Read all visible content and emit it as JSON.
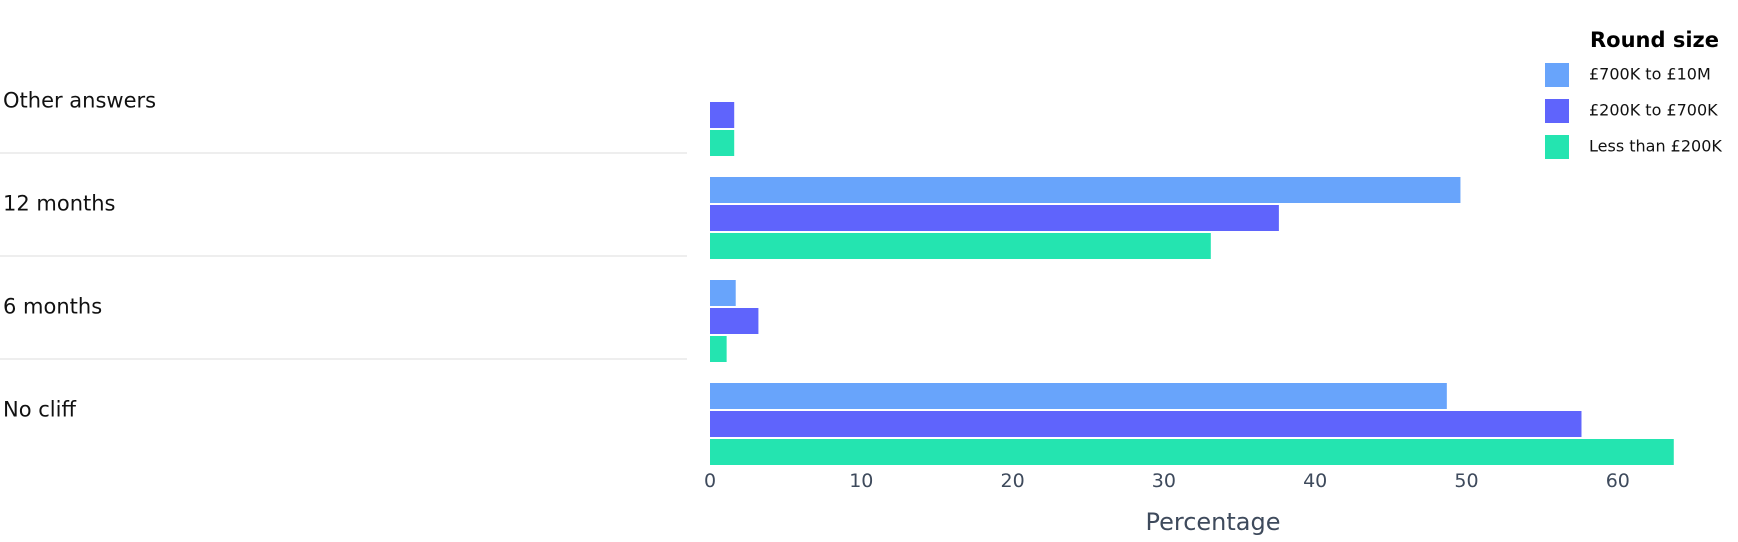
{
  "chart_data": {
    "type": "bar",
    "orientation": "horizontal",
    "categories": [
      "Other answers",
      "12 months",
      "6 months",
      "No cliff"
    ],
    "series": [
      {
        "name": "£700K to £10M",
        "color": "#68a4fb",
        "values": [
          0,
          49.6,
          1.7,
          48.7
        ]
      },
      {
        "name": "£200K to £700K",
        "color": "#5f64fc",
        "values": [
          1.6,
          37.6,
          3.2,
          57.6
        ]
      },
      {
        "name": "Less than £200K",
        "color": "#24e4b0",
        "values": [
          1.6,
          33.1,
          1.1,
          63.7
        ]
      }
    ],
    "xlabel": "Percentage",
    "ylabel": "",
    "title": "",
    "xlim": [
      0,
      65
    ],
    "xticks": [
      0,
      10,
      20,
      30,
      40,
      50,
      60
    ],
    "grid": false,
    "legend": {
      "title": "Round size",
      "placement": "top-right"
    }
  }
}
